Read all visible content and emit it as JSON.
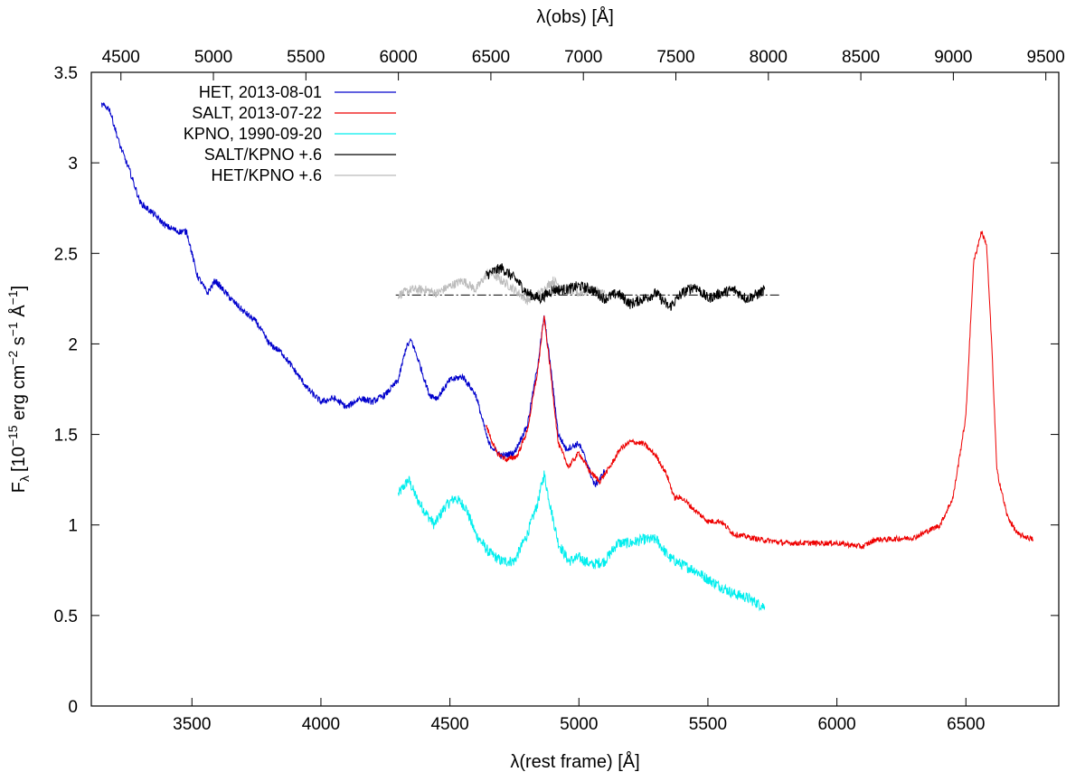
{
  "chart_data": {
    "type": "line",
    "title": "",
    "xlabel": "λ(rest frame) [Å]",
    "x2label": "λ(obs) [Å]",
    "ylabel": "F",
    "ylabel_sub": "λ",
    "ylabel_unit": "[10",
    "ylabel_exp1": "−15",
    "ylabel_unit2": " erg cm",
    "ylabel_exp2": "−2",
    "ylabel_unit3": " s",
    "ylabel_exp3": "−1",
    "ylabel_unit4": " Å",
    "ylabel_exp4": "−1",
    "ylabel_close": "]",
    "xlim": [
      3110,
      6860
    ],
    "ylim": [
      0,
      3.5
    ],
    "x2lim": [
      4340,
      9570
    ],
    "x_ticks": [
      3500,
      4000,
      4500,
      5000,
      5500,
      6000,
      6500
    ],
    "x_tick_labels": [
      "3500",
      "4000",
      "4500",
      "5000",
      "5500",
      "6000",
      "6500"
    ],
    "y_ticks": [
      0,
      0.5,
      1,
      1.5,
      2,
      2.5,
      3,
      3.5
    ],
    "y_tick_labels": [
      "0",
      "0.5",
      "1",
      "1.5",
      "2",
      "2.5",
      "3",
      "3.5"
    ],
    "x2_ticks": [
      4500,
      5000,
      5500,
      6000,
      6500,
      7000,
      7500,
      8000,
      8500,
      9000,
      9500
    ],
    "x2_tick_labels": [
      "4500",
      "5000",
      "5500",
      "6000",
      "6500",
      "7000",
      "7500",
      "8000",
      "8500",
      "9000",
      "9500"
    ],
    "legend_position": "top-left",
    "series": [
      {
        "name": "HET, 2013-08-01",
        "color": "#0000cc",
        "noise": 0.018,
        "x": [
          3150,
          3180,
          3220,
          3260,
          3300,
          3350,
          3400,
          3450,
          3480,
          3520,
          3560,
          3590,
          3650,
          3700,
          3750,
          3800,
          3850,
          3900,
          3950,
          4000,
          4050,
          4100,
          4150,
          4200,
          4250,
          4300,
          4330,
          4350,
          4380,
          4420,
          4450,
          4500,
          4550,
          4600,
          4650,
          4700,
          4750,
          4800,
          4840,
          4865,
          4890,
          4920,
          4950,
          5000,
          5030,
          5060,
          5080,
          5100
        ],
        "y": [
          3.32,
          3.3,
          3.1,
          2.95,
          2.78,
          2.72,
          2.65,
          2.62,
          2.62,
          2.38,
          2.28,
          2.35,
          2.25,
          2.18,
          2.12,
          2.0,
          1.95,
          1.85,
          1.75,
          1.68,
          1.7,
          1.65,
          1.7,
          1.68,
          1.72,
          1.8,
          1.98,
          2.02,
          1.9,
          1.72,
          1.7,
          1.8,
          1.82,
          1.72,
          1.45,
          1.38,
          1.4,
          1.55,
          1.88,
          2.15,
          1.88,
          1.5,
          1.42,
          1.45,
          1.35,
          1.22,
          1.25,
          1.3
        ]
      },
      {
        "name": "SALT, 2013-07-22",
        "color": "#ee0000",
        "noise": 0.015,
        "x": [
          4640,
          4680,
          4720,
          4760,
          4800,
          4840,
          4865,
          4890,
          4920,
          4960,
          5000,
          5040,
          5080,
          5120,
          5160,
          5200,
          5250,
          5300,
          5340,
          5370,
          5400,
          5450,
          5500,
          5550,
          5600,
          5700,
          5800,
          5900,
          6000,
          6100,
          6150,
          6200,
          6300,
          6400,
          6450,
          6500,
          6530,
          6560,
          6580,
          6600,
          6620,
          6660,
          6700,
          6760
        ],
        "y": [
          1.55,
          1.4,
          1.36,
          1.38,
          1.52,
          1.85,
          2.15,
          1.85,
          1.45,
          1.32,
          1.4,
          1.3,
          1.24,
          1.32,
          1.42,
          1.46,
          1.45,
          1.38,
          1.28,
          1.15,
          1.15,
          1.08,
          1.02,
          1.02,
          0.95,
          0.92,
          0.9,
          0.9,
          0.9,
          0.88,
          0.92,
          0.92,
          0.93,
          1.0,
          1.15,
          1.6,
          2.45,
          2.62,
          2.55,
          2.0,
          1.3,
          1.05,
          0.95,
          0.92
        ]
      },
      {
        "name": "KPNO, 1990-09-20",
        "color": "#00eeee",
        "noise": 0.03,
        "x": [
          4300,
          4340,
          4370,
          4400,
          4440,
          4480,
          4520,
          4560,
          4600,
          4650,
          4700,
          4750,
          4800,
          4840,
          4865,
          4890,
          4920,
          4960,
          5000,
          5050,
          5100,
          5150,
          5200,
          5250,
          5300,
          5350,
          5400,
          5450,
          5500,
          5550,
          5600,
          5650,
          5700,
          5720
        ],
        "y": [
          1.17,
          1.25,
          1.15,
          1.08,
          1.0,
          1.1,
          1.15,
          1.1,
          0.95,
          0.85,
          0.8,
          0.8,
          0.95,
          1.12,
          1.28,
          1.1,
          0.9,
          0.8,
          0.82,
          0.78,
          0.8,
          0.9,
          0.9,
          0.92,
          0.92,
          0.82,
          0.78,
          0.75,
          0.7,
          0.66,
          0.62,
          0.6,
          0.56,
          0.55
        ]
      },
      {
        "name": "SALT/KPNO +.6",
        "color": "#000000",
        "noise": 0.03,
        "x": [
          4640,
          4700,
          4760,
          4800,
          4850,
          4900,
          4950,
          5000,
          5050,
          5100,
          5150,
          5200,
          5250,
          5300,
          5350,
          5400,
          5450,
          5500,
          5550,
          5600,
          5650,
          5700,
          5720
        ],
        "y": [
          2.38,
          2.42,
          2.35,
          2.28,
          2.25,
          2.3,
          2.3,
          2.32,
          2.3,
          2.25,
          2.28,
          2.22,
          2.25,
          2.28,
          2.2,
          2.28,
          2.32,
          2.25,
          2.28,
          2.3,
          2.25,
          2.28,
          2.3
        ]
      },
      {
        "name": "HET/KPNO +.6",
        "color": "#bbbbbb",
        "noise": 0.025,
        "x": [
          4300,
          4350,
          4400,
          4450,
          4500,
          4550,
          4600,
          4650,
          4700,
          4750,
          4800,
          4850,
          4900,
          4950,
          5000,
          5050,
          5100
        ],
        "y": [
          2.27,
          2.3,
          2.3,
          2.28,
          2.32,
          2.35,
          2.3,
          2.4,
          2.35,
          2.3,
          2.24,
          2.28,
          2.35,
          2.3,
          2.28,
          2.3,
          2.28
        ]
      }
    ],
    "reference_line": {
      "style": "dash-dot",
      "y": 2.27,
      "x": [
        4290,
        5780
      ]
    },
    "ruby": false
  }
}
